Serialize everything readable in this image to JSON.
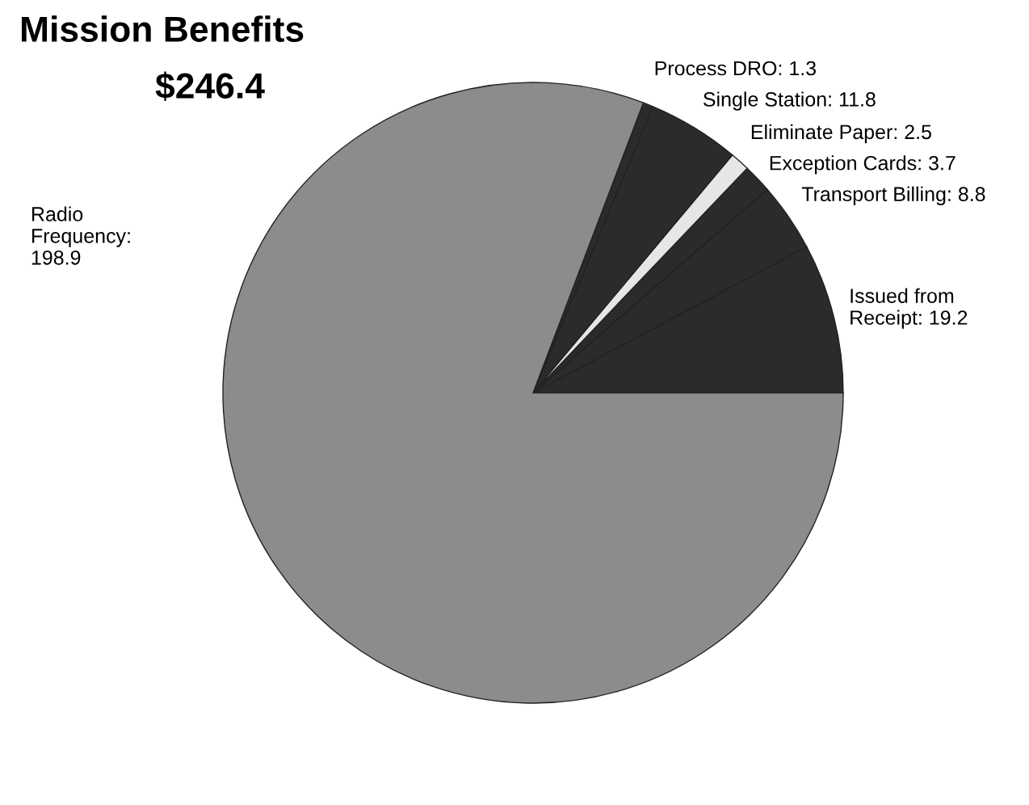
{
  "chart_data": {
    "type": "pie",
    "title": "Mission Benefits",
    "subtitle": "$246.4",
    "categories": [
      null,
      null,
      null,
      null,
      null,
      null,
      null
    ],
    "values": [
      19.2,
      8.8,
      3.7,
      2.5,
      11.8,
      1.3,
      198.9
    ],
    "colors": [
      "#2b2b2b",
      "#2b2b2b",
      "#2b2b2b",
      "#e6e6e6",
      "#2b2b2b",
      "#2b2b2b",
      "#8c8c8c"
    ],
    "value_labels": [
      "Issued from\nReceipt: 19.2",
      "Transport Billing: 8.8",
      "Exception Cards: 3.7",
      "Eliminate Paper: 2.5",
      "Single Station: 11.8",
      "Process DRO: 1.3",
      "Radio\nFrequency:\n198.9"
    ]
  }
}
